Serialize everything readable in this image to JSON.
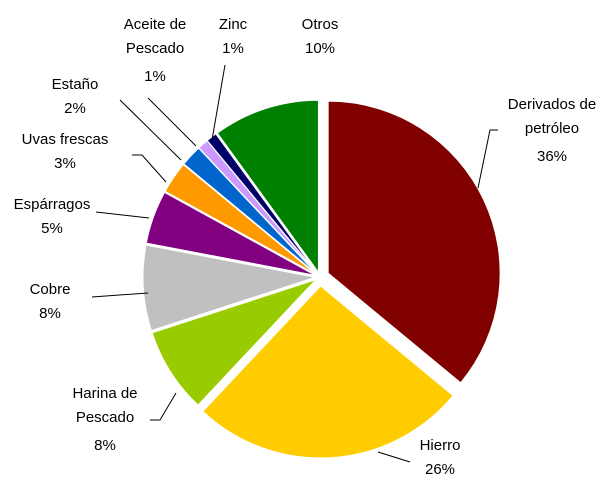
{
  "chart_data": {
    "type": "pie",
    "categories": [
      "Derivados de petróleo",
      "Hierro",
      "Harina de Pescado",
      "Cobre",
      "Espárragos",
      "Uvas frescas",
      "Estaño",
      "Aceite de Pescado",
      "Zinc",
      "Otros"
    ],
    "values": [
      36,
      26,
      8,
      8,
      5,
      3,
      2,
      1,
      1,
      10
    ],
    "value_labels": [
      "36%",
      "26%",
      "8%",
      "8%",
      "5%",
      "3%",
      "2%",
      "1%",
      "1%",
      "10%"
    ],
    "colors": [
      "#800000",
      "#FFCC00",
      "#99CC00",
      "#C0C0C0",
      "#800080",
      "#FF9900",
      "#0066CC",
      "#CC99FF",
      "#000066",
      "#008000"
    ]
  }
}
